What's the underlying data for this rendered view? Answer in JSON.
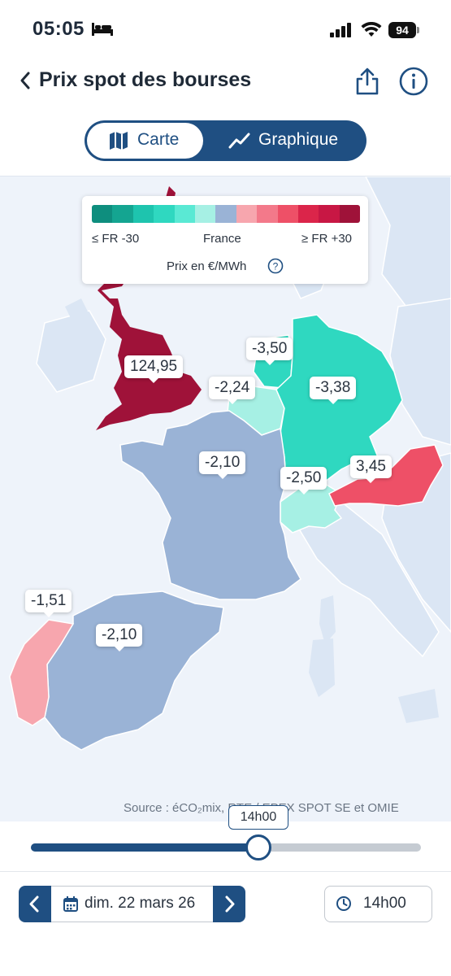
{
  "status": {
    "time": "05:05",
    "battery": "94"
  },
  "header": {
    "title": "Prix spot des bourses"
  },
  "tabs": {
    "map_label": "Carte",
    "chart_label": "Graphique"
  },
  "legend": {
    "min_label": "≤ FR -30",
    "mid_label": "France",
    "max_label": "≥ FR +30",
    "unit_label": "Prix en €/MWh",
    "colors": [
      "#0e8e7e",
      "#14a591",
      "#1ec4ae",
      "#2fd8c0",
      "#5ae9d4",
      "#a6f0e4",
      "#9ab3d6",
      "#f7a6ae",
      "#f3798a",
      "#ee5067",
      "#db254a",
      "#c81744",
      "#9f1239"
    ]
  },
  "prices": {
    "uk": "124,95",
    "netherlands": "-3,50",
    "belgium": "-2,24",
    "germany": "-3,38",
    "france": "-2,10",
    "switzerland": "-2,50",
    "austria": "3,45",
    "portugal": "-1,51",
    "spain": "-2,10"
  },
  "source": "Source : éCO₂mix, RTE / EPEX SPOT SE et OMIE",
  "slider": {
    "tooltip": "14h00",
    "position": 0.58
  },
  "controls": {
    "date": "dim. 22 mars 26",
    "time": "14h00"
  }
}
